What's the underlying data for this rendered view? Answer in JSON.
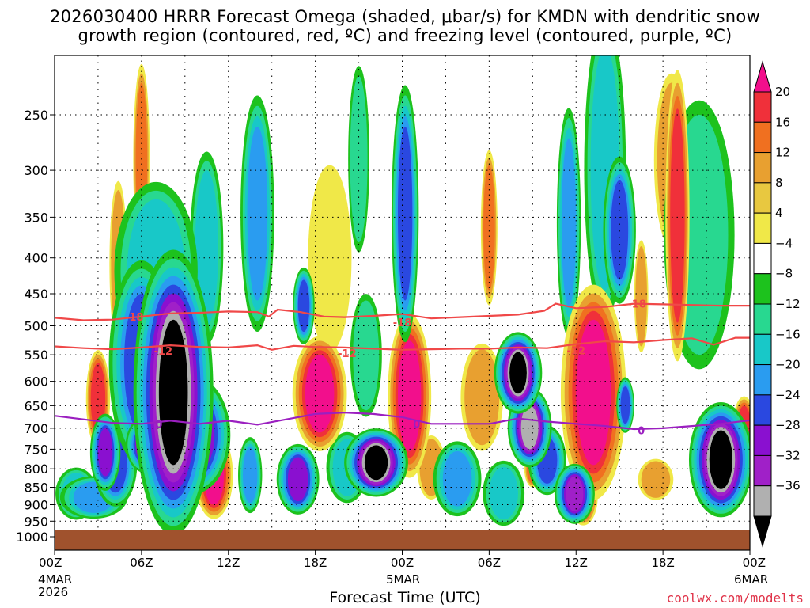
{
  "title_line1": "2026030400 HRRR Forecast Omega (shaded, μbar/s) for KMDN with dendritic snow",
  "title_line2": "growth region (contoured, red, ºC) and freezing level (contoured, purple, ºC)",
  "xlabel": "Forecast Time (UTC)",
  "credit": "coolwx.com/modelts",
  "date_labels": {
    "start_day": "4MAR",
    "start_year": "2026",
    "mid_day": "5MAR",
    "end_day": "6MAR"
  },
  "colors": {
    "background": "#ffffff",
    "ground": "#a0522d",
    "dgz_contour": "#f04848",
    "freezing_contour": "#9b1fc0"
  },
  "chart_data": {
    "type": "heatmap",
    "title": "2026030400 HRRR Forecast Omega (shaded, μbar/s) for KMDN with dendritic snow growth region (contoured, red, ºC) and freezing level (contoured, purple, ºC)",
    "xlabel": "Forecast Time (UTC)",
    "ylabel": "",
    "x_range_hours": [
      0,
      48
    ],
    "y_range_hpa": [
      200,
      1000
    ],
    "y_scale": "log",
    "x_ticks": [
      {
        "hour": 0,
        "label": "00Z"
      },
      {
        "hour": 6,
        "label": "06Z"
      },
      {
        "hour": 12,
        "label": "12Z"
      },
      {
        "hour": 18,
        "label": "18Z"
      },
      {
        "hour": 24,
        "label": "00Z"
      },
      {
        "hour": 30,
        "label": "06Z"
      },
      {
        "hour": 36,
        "label": "12Z"
      },
      {
        "hour": 42,
        "label": "18Z"
      },
      {
        "hour": 48,
        "label": "00Z"
      }
    ],
    "y_ticks": [
      250,
      300,
      350,
      400,
      450,
      500,
      550,
      600,
      650,
      700,
      750,
      800,
      850,
      900,
      950,
      1000
    ],
    "colorbar": {
      "ticks": [
        "20",
        "16",
        "12",
        "8",
        "4",
        "−4",
        "−8",
        "−12",
        "−16",
        "−20",
        "−24",
        "−28",
        "−32",
        "−36"
      ],
      "colors_top_to_bottom": [
        "#f20f8c",
        "#f0303a",
        "#f07020",
        "#e8a030",
        "#e8c840",
        "#f0e848",
        "#ffffff",
        "#1dc21d",
        "#28d890",
        "#18c8c8",
        "#2a9cf0",
        "#2a48e0",
        "#8a10d0",
        "#a020c8",
        "#b0b0b0",
        "#000000"
      ]
    },
    "contours": [
      {
        "name": "dendritic -18C",
        "label": "-18",
        "color": "#f04848",
        "points": [
          [
            0,
            487
          ],
          [
            2,
            491
          ],
          [
            4,
            490
          ],
          [
            6,
            485
          ],
          [
            8,
            480
          ],
          [
            10,
            479
          ],
          [
            12,
            477
          ],
          [
            14,
            478
          ],
          [
            14.8,
            485
          ],
          [
            15.4,
            474
          ],
          [
            17,
            478
          ],
          [
            18.6,
            485
          ],
          [
            20,
            486
          ],
          [
            22,
            484
          ],
          [
            24,
            481
          ],
          [
            26,
            488
          ],
          [
            28,
            486
          ],
          [
            30,
            484
          ],
          [
            32,
            482
          ],
          [
            33.8,
            476
          ],
          [
            34.6,
            465
          ],
          [
            36,
            472
          ],
          [
            38,
            470
          ],
          [
            40,
            465
          ],
          [
            42,
            466
          ],
          [
            44,
            467
          ],
          [
            46,
            468
          ],
          [
            48,
            468
          ]
        ]
      },
      {
        "name": "dendritic -12C",
        "label": "-12",
        "color": "#f04848",
        "points": [
          [
            0,
            535
          ],
          [
            2,
            538
          ],
          [
            4,
            540
          ],
          [
            6,
            537
          ],
          [
            8,
            533
          ],
          [
            10,
            536
          ],
          [
            12,
            537
          ],
          [
            14,
            533
          ],
          [
            15,
            541
          ],
          [
            16.5,
            534
          ],
          [
            18,
            536
          ],
          [
            20,
            537
          ],
          [
            22,
            539
          ],
          [
            24,
            541
          ],
          [
            26,
            540
          ],
          [
            28,
            539
          ],
          [
            30,
            539
          ],
          [
            32,
            537
          ],
          [
            34,
            538
          ],
          [
            36,
            531
          ],
          [
            38,
            526
          ],
          [
            40,
            528
          ],
          [
            42,
            524
          ],
          [
            44,
            521
          ],
          [
            45.5,
            532
          ],
          [
            47,
            520
          ],
          [
            48,
            520
          ]
        ]
      },
      {
        "name": "freezing level 0C",
        "label": "0",
        "color": "#9b1fc0",
        "points": [
          [
            0,
            672
          ],
          [
            2,
            680
          ],
          [
            4,
            688
          ],
          [
            6,
            690
          ],
          [
            8,
            683
          ],
          [
            10,
            690
          ],
          [
            12,
            683
          ],
          [
            14,
            692
          ],
          [
            16,
            680
          ],
          [
            18,
            668
          ],
          [
            20,
            665
          ],
          [
            22,
            668
          ],
          [
            24,
            675
          ],
          [
            26,
            690
          ],
          [
            28,
            690
          ],
          [
            30,
            690
          ],
          [
            32,
            678
          ],
          [
            34,
            685
          ],
          [
            36,
            690
          ],
          [
            38,
            695
          ],
          [
            40,
            702
          ],
          [
            42,
            700
          ],
          [
            44,
            695
          ],
          [
            46,
            690
          ],
          [
            48,
            682
          ]
        ]
      }
    ],
    "contour_labels": [
      {
        "text": "-18",
        "hour": 5.5,
        "hpa": 485
      },
      {
        "text": "-18",
        "hour": 24.0,
        "hpa": 494
      },
      {
        "text": "-18",
        "hour": 40.2,
        "hpa": 465
      },
      {
        "text": "-12",
        "hour": 7.5,
        "hpa": 543
      },
      {
        "text": "-12",
        "hour": 20.2,
        "hpa": 547
      },
      {
        "text": "-12",
        "hour": 36.0,
        "hpa": 542
      },
      {
        "text": "0",
        "hour": 7.2,
        "hpa": 690
      },
      {
        "text": "0",
        "hour": 25.0,
        "hpa": 690
      },
      {
        "text": "0",
        "hour": 40.5,
        "hpa": 705
      }
    ],
    "omega_features": [
      {
        "hour": 8.2,
        "hpa": 640,
        "value": -36,
        "w": 1.0,
        "h": 300
      },
      {
        "hour": 9.6,
        "hpa": 720,
        "value": -33,
        "w": 1.0,
        "h": 150
      },
      {
        "hour": 6.3,
        "hpa": 740,
        "value": -30,
        "w": 0.6,
        "h": 80
      },
      {
        "hour": 6.0,
        "hpa": 580,
        "value": -22,
        "w": 1.2,
        "h": 260
      },
      {
        "hour": 7.0,
        "hpa": 430,
        "value": -14,
        "w": 2.0,
        "h": 200
      },
      {
        "hour": 3.5,
        "hpa": 760,
        "value": -26,
        "w": 0.5,
        "h": 120
      },
      {
        "hour": 4.2,
        "hpa": 790,
        "value": -20,
        "w": 0.8,
        "h": 150
      },
      {
        "hour": 2.7,
        "hpa": 880,
        "value": -18,
        "w": 1.4,
        "h": 90
      },
      {
        "hour": 1.5,
        "hpa": 870,
        "value": -14,
        "w": 1.0,
        "h": 120
      },
      {
        "hour": 4.4,
        "hpa": 420,
        "value": 10,
        "w": 0.5,
        "h": 200
      },
      {
        "hour": 6.0,
        "hpa": 300,
        "value": 12,
        "w": 0.4,
        "h": 150
      },
      {
        "hour": 3.0,
        "hpa": 640,
        "value": 16,
        "w": 0.5,
        "h": 150
      },
      {
        "hour": 11.0,
        "hpa": 820,
        "value": 20,
        "w": 0.7,
        "h": 160
      },
      {
        "hour": 10.5,
        "hpa": 400,
        "value": -12,
        "w": 0.8,
        "h": 200
      },
      {
        "hour": 13.5,
        "hpa": 820,
        "value": -18,
        "w": 0.5,
        "h": 150
      },
      {
        "hour": 14.0,
        "hpa": 360,
        "value": -16,
        "w": 0.7,
        "h": 200
      },
      {
        "hour": 16.8,
        "hpa": 830,
        "value": -24,
        "w": 0.7,
        "h": 120
      },
      {
        "hour": 17.2,
        "hpa": 470,
        "value": -22,
        "w": 0.4,
        "h": 80
      },
      {
        "hour": 18.3,
        "hpa": 630,
        "value": 20,
        "w": 1.0,
        "h": 160
      },
      {
        "hour": 19.0,
        "hpa": 420,
        "value": 6,
        "w": 1.5,
        "h": 250
      },
      {
        "hour": 21.0,
        "hpa": 300,
        "value": -10,
        "w": 0.6,
        "h": 160
      },
      {
        "hour": 22.2,
        "hpa": 785,
        "value": -36,
        "w": 0.8,
        "h": 90
      },
      {
        "hour": 21.5,
        "hpa": 560,
        "value": -10,
        "w": 0.9,
        "h": 200
      },
      {
        "hour": 24.5,
        "hpa": 640,
        "value": 20,
        "w": 0.8,
        "h": 230
      },
      {
        "hour": 24.2,
        "hpa": 360,
        "value": -20,
        "w": 0.5,
        "h": 200
      },
      {
        "hour": 20.2,
        "hpa": 800,
        "value": -12,
        "w": 1.0,
        "h": 150
      },
      {
        "hour": 26.0,
        "hpa": 800,
        "value": 8,
        "w": 0.8,
        "h": 150
      },
      {
        "hour": 27.8,
        "hpa": 830,
        "value": -16,
        "w": 1.0,
        "h": 150
      },
      {
        "hour": 29.5,
        "hpa": 640,
        "value": 8,
        "w": 1.2,
        "h": 200
      },
      {
        "hour": 30.0,
        "hpa": 370,
        "value": 14,
        "w": 0.4,
        "h": 150
      },
      {
        "hour": 31.0,
        "hpa": 870,
        "value": -14,
        "w": 1.0,
        "h": 150
      },
      {
        "hour": 32.0,
        "hpa": 585,
        "value": -36,
        "w": 0.6,
        "h": 80
      },
      {
        "hour": 32.8,
        "hpa": 700,
        "value": -32,
        "w": 0.6,
        "h": 100
      },
      {
        "hour": 34.0,
        "hpa": 780,
        "value": -22,
        "w": 0.7,
        "h": 120
      },
      {
        "hour": 33.0,
        "hpa": 800,
        "value": 12,
        "w": 0.4,
        "h": 80
      },
      {
        "hour": 35.9,
        "hpa": 870,
        "value": -30,
        "w": 0.6,
        "h": 100
      },
      {
        "hour": 35.5,
        "hpa": 370,
        "value": -16,
        "w": 0.5,
        "h": 200
      },
      {
        "hour": 37.2,
        "hpa": 640,
        "value": 20,
        "w": 1.2,
        "h": 300
      },
      {
        "hour": 36.5,
        "hpa": 880,
        "value": 18,
        "w": 0.6,
        "h": 120
      },
      {
        "hour": 38.0,
        "hpa": 320,
        "value": -12,
        "w": 1.0,
        "h": 250
      },
      {
        "hour": 39.0,
        "hpa": 370,
        "value": -22,
        "w": 0.6,
        "h": 120
      },
      {
        "hour": 39.4,
        "hpa": 650,
        "value": -22,
        "w": 0.3,
        "h": 80
      },
      {
        "hour": 40.5,
        "hpa": 460,
        "value": 8,
        "w": 0.4,
        "h": 150
      },
      {
        "hour": 43.0,
        "hpa": 370,
        "value": 16,
        "w": 0.5,
        "h": 250
      },
      {
        "hour": 42.6,
        "hpa": 300,
        "value": 10,
        "w": 1.0,
        "h": 150
      },
      {
        "hour": 46.0,
        "hpa": 780,
        "value": -36,
        "w": 0.8,
        "h": 150
      },
      {
        "hour": 47.6,
        "hpa": 710,
        "value": 18,
        "w": 0.5,
        "h": 120
      },
      {
        "hour": 44.5,
        "hpa": 400,
        "value": -10,
        "w": 2.0,
        "h": 300
      },
      {
        "hour": 41.5,
        "hpa": 830,
        "value": 10,
        "w": 1.0,
        "h": 100
      }
    ]
  }
}
